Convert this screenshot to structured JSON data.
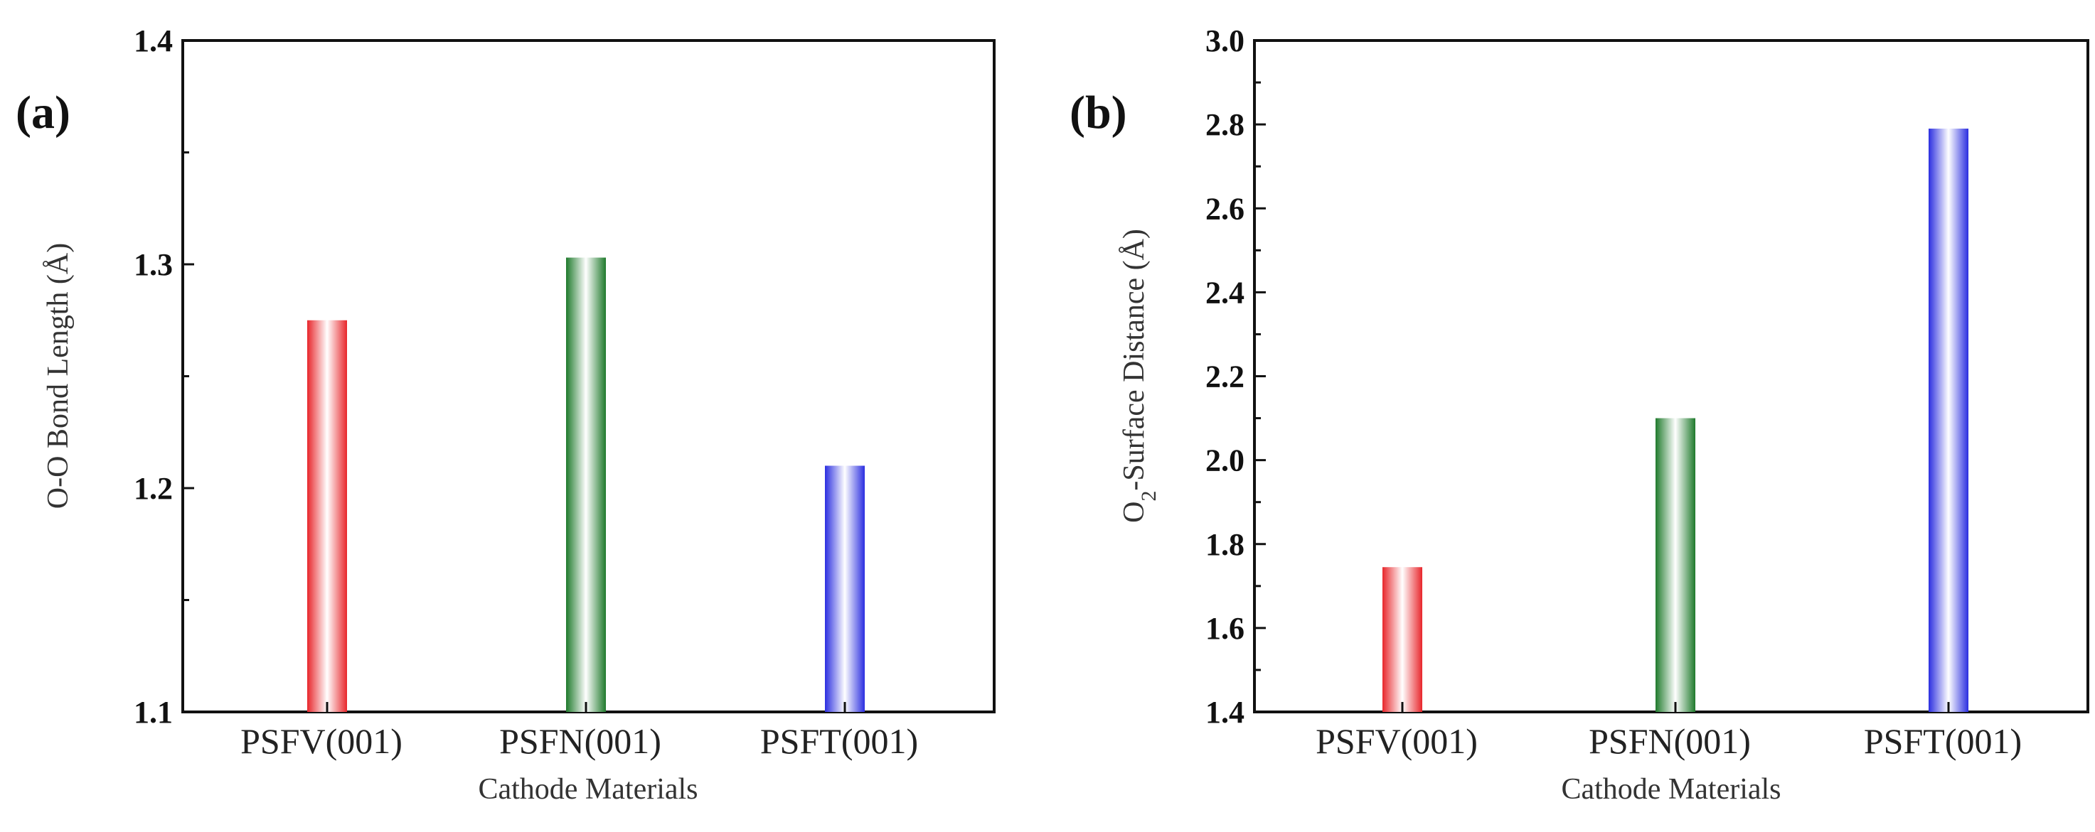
{
  "chart_data": [
    {
      "type": "bar",
      "panel_label": "(a)",
      "categories": [
        "PSFV(001)",
        "PSFN(001)",
        "PSFT(001)"
      ],
      "values": [
        1.275,
        1.303,
        1.21
      ],
      "bar_colors": [
        "#e8262b",
        "#1f7a2c",
        "#2b2ee0"
      ],
      "title": "",
      "xlabel": "Cathode Materials",
      "ylabel": "O-O Bond Length (Å)",
      "ylim": [
        1.1,
        1.4
      ],
      "yticks": [
        "1.1",
        "1.2",
        "1.3",
        "1.4"
      ],
      "ytick_values": [
        1.1,
        1.2,
        1.3,
        1.4
      ],
      "yminor_values": [
        1.15,
        1.25,
        1.35
      ],
      "grid": false
    },
    {
      "type": "bar",
      "panel_label": "(b)",
      "categories": [
        "PSFV(001)",
        "PSFN(001)",
        "PSFT(001)"
      ],
      "values": [
        1.745,
        2.1,
        2.79
      ],
      "bar_colors": [
        "#e8262b",
        "#1f7a2c",
        "#2b2ee0"
      ],
      "title": "",
      "xlabel": "Cathode Materials",
      "ylabel_prefix": "O",
      "ylabel_sub": "2",
      "ylabel_suffix": "-Surface  Distance (Å)",
      "ylim": [
        1.4,
        3.0
      ],
      "yticks": [
        "1.4",
        "1.6",
        "1.8",
        "2.0",
        "2.2",
        "2.4",
        "2.6",
        "2.8",
        "3.0"
      ],
      "ytick_values": [
        1.4,
        1.6,
        1.8,
        2.0,
        2.2,
        2.4,
        2.6,
        2.8,
        3.0
      ],
      "yminor_values": [
        1.5,
        1.7,
        1.9,
        2.1,
        2.3,
        2.5,
        2.7,
        2.9
      ],
      "grid": false
    }
  ]
}
